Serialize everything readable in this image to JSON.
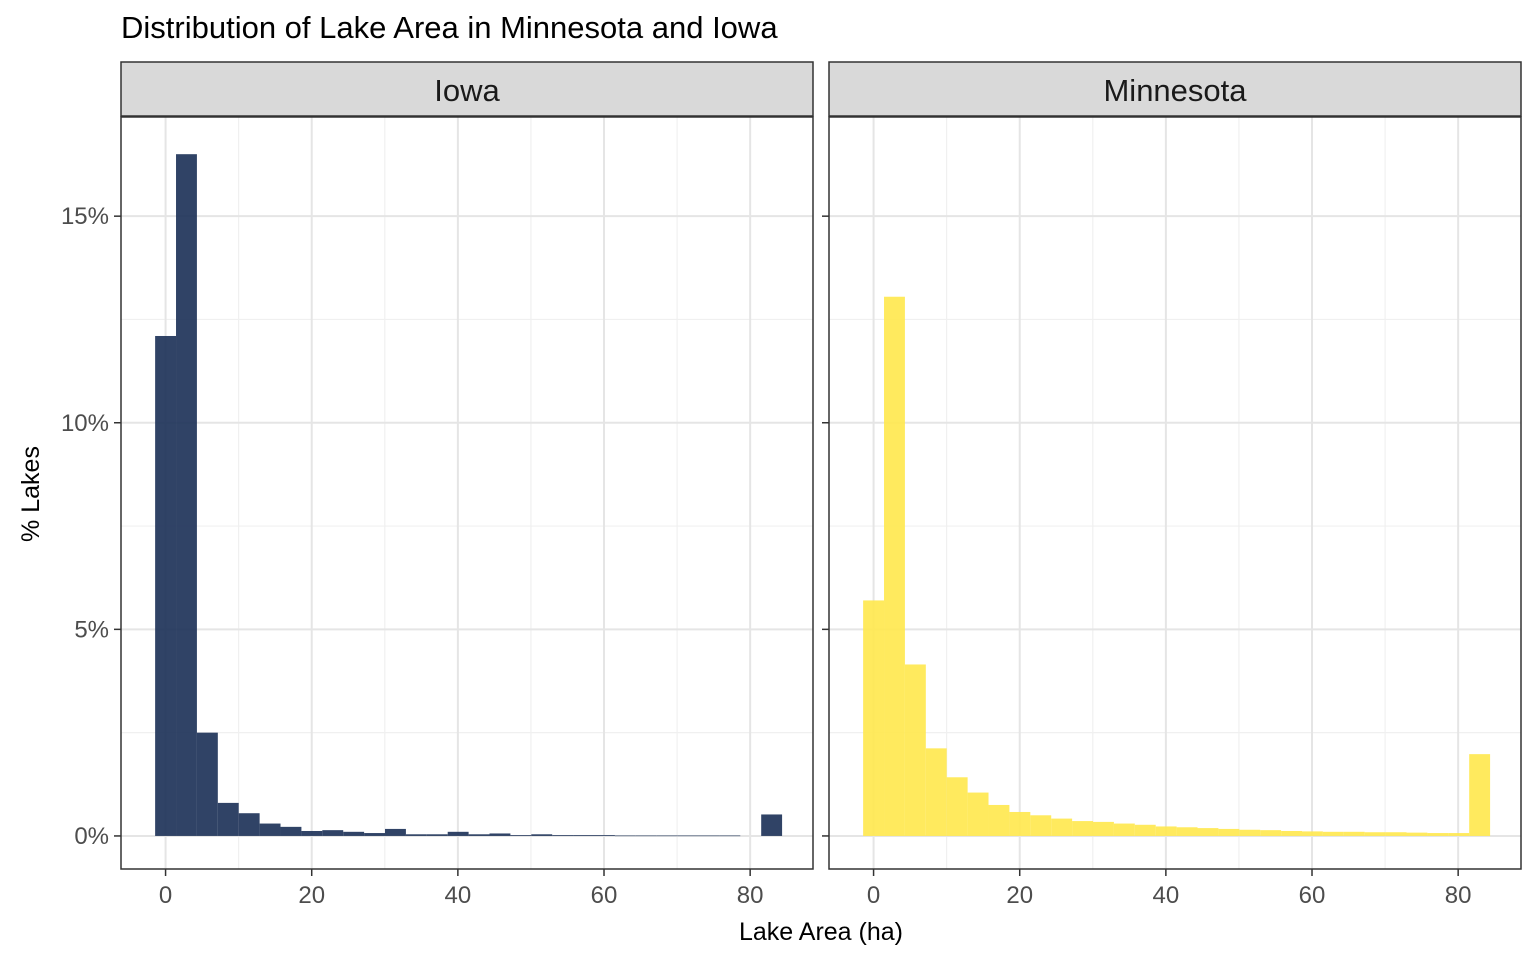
{
  "chart_data": {
    "type": "bar",
    "title": "Distribution of Lake Area in Minnesota and Iowa",
    "xlabel": "Lake Area (ha)",
    "ylabel": "% Lakes",
    "xlim": [
      -6.1,
      88.6
    ],
    "ylim": [
      -0.8,
      17.4
    ],
    "x_ticks": [
      "0",
      "20",
      "40",
      "60",
      "80"
    ],
    "y_ticks": [
      "0%",
      "5%",
      "10%",
      "15%"
    ],
    "bin_width": 2.86,
    "bin_centers": [
      0,
      2.86,
      5.72,
      8.58,
      11.44,
      14.3,
      17.16,
      20.02,
      22.88,
      25.74,
      28.6,
      31.46,
      34.32,
      37.18,
      40.04,
      42.9,
      45.76,
      48.62,
      51.48,
      54.34,
      57.2,
      60.06,
      62.92,
      65.78,
      68.64,
      71.5,
      74.36,
      77.22,
      80.08,
      82.94
    ],
    "grid": true,
    "panels": [
      {
        "name": "Iowa",
        "color": "#1a2f55",
        "values": [
          12.1,
          16.5,
          2.5,
          0.8,
          0.55,
          0.3,
          0.22,
          0.12,
          0.14,
          0.1,
          0.07,
          0.17,
          0.04,
          0.04,
          0.1,
          0.04,
          0.06,
          0.02,
          0.04,
          0.02,
          0.02,
          0.02,
          0.01,
          0.01,
          0.01,
          0.01,
          0.01,
          0.01,
          0.0,
          0.52
        ]
      },
      {
        "name": "Minnesota",
        "color": "#ffe84d",
        "values": [
          5.7,
          13.05,
          4.15,
          2.12,
          1.42,
          1.05,
          0.75,
          0.58,
          0.5,
          0.42,
          0.36,
          0.34,
          0.3,
          0.27,
          0.23,
          0.21,
          0.19,
          0.17,
          0.15,
          0.14,
          0.12,
          0.11,
          0.1,
          0.1,
          0.09,
          0.09,
          0.08,
          0.07,
          0.07,
          1.98
        ]
      }
    ]
  }
}
